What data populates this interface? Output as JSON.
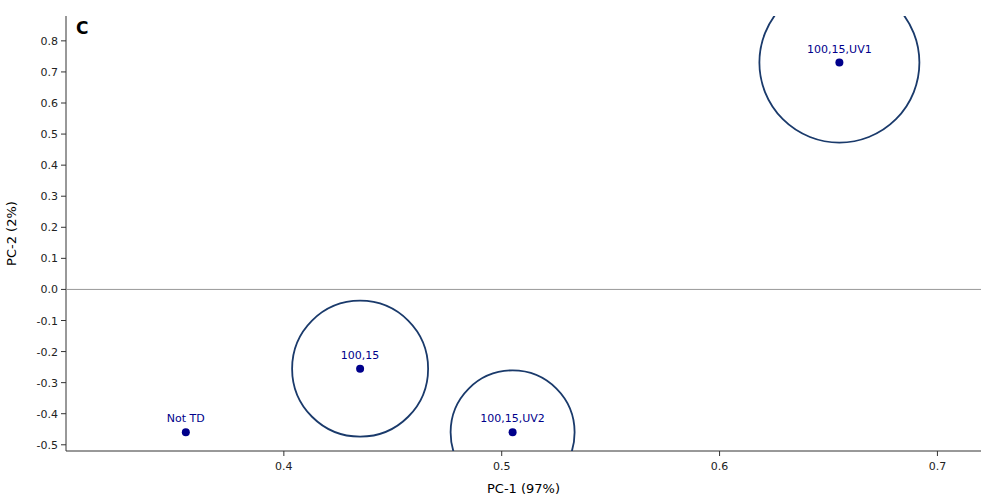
{
  "chart_data": {
    "type": "scatter",
    "xlabel": "PC-1 (97%)",
    "ylabel": "PC-2 (2%)",
    "annotations": [
      {
        "text": "C"
      }
    ],
    "xlim": [
      0.3,
      0.72
    ],
    "ylim": [
      -0.52,
      0.88
    ],
    "xticks": [
      0.4,
      0.5,
      0.6,
      0.7
    ],
    "yticks": [
      -0.5,
      -0.4,
      -0.3,
      -0.2,
      -0.1,
      {
        "value": 0.0,
        "label": "0.0"
      },
      0.1,
      0.2,
      0.3,
      0.4,
      0.5,
      0.6,
      0.7,
      0.8
    ],
    "hlines": [
      0.0
    ],
    "series": [
      {
        "type": "scatter",
        "marker": "circle",
        "color": "#00008B",
        "x": [
          0.355,
          0.435,
          0.505,
          0.655
        ],
        "values": [
          -0.46,
          -0.255,
          -0.46,
          0.73
        ],
        "labels": [
          "Not TD",
          "100,15",
          "100,15,UV2",
          "100,15,UV1"
        ]
      },
      {
        "type": "circle",
        "color": "#1a3a6b",
        "x": [
          0.435,
          0.505,
          0.655
        ],
        "values": [
          -0.255,
          -0.46,
          0.73
        ],
        "sizes": [
          68,
          62,
          80
        ]
      }
    ]
  }
}
